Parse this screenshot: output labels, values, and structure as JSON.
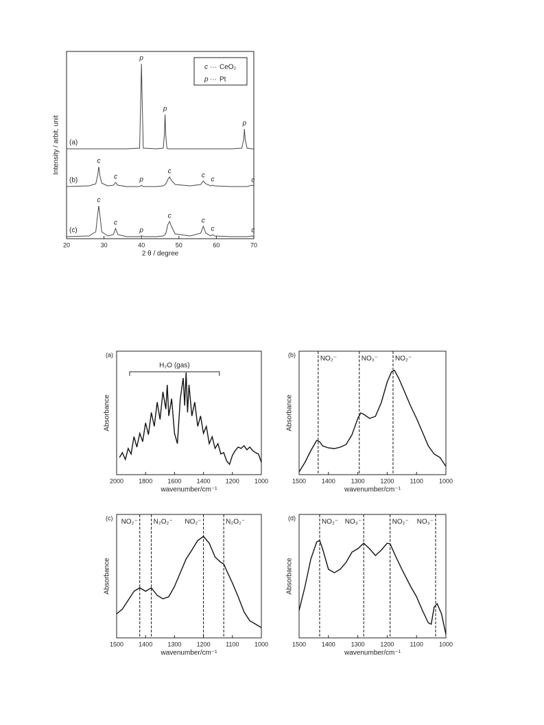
{
  "chart_data": [
    {
      "type": "xrd",
      "xlabel": "2 θ / degree",
      "ylabel": "Intensity / arbit. unit",
      "xlim": [
        20,
        70
      ],
      "xticks": [
        20,
        30,
        40,
        50,
        60,
        70
      ],
      "legend": [
        {
          "key": "c",
          "sep": "···",
          "text": "CeO₂"
        },
        {
          "key": "p",
          "sep": "···",
          "text": "Pt"
        }
      ],
      "x": [
        20,
        26,
        27.8,
        28.3,
        28.6,
        28.9,
        29.4,
        31,
        32.5,
        33.1,
        33.7,
        36,
        39.5,
        39.8,
        40,
        40.2,
        40.5,
        44,
        45.8,
        46.1,
        46.3,
        46.5,
        46.8,
        47,
        47.5,
        48,
        49,
        53,
        55.8,
        56.5,
        57.2,
        58.5,
        59,
        59.5,
        64,
        66.8,
        67.3,
        67.5,
        67.7,
        68.2,
        69.5,
        70
      ],
      "series": [
        {
          "name": "(a)",
          "color": "#444444",
          "values": [
            131,
            131,
            131,
            131,
            131,
            131,
            131,
            131,
            131,
            131,
            131,
            131,
            132,
            200,
            255,
            200,
            132,
            131,
            132,
            150,
            181,
            150,
            132,
            131,
            131,
            131,
            131,
            131,
            131,
            131,
            131,
            131,
            131,
            131,
            131,
            132,
            145,
            160,
            145,
            132,
            131,
            131
          ]
        },
        {
          "name": "(b)",
          "color": "#444444",
          "values": [
            76,
            77,
            80,
            92,
            105,
            92,
            81,
            77,
            78,
            82,
            78,
            76,
            76,
            77,
            78,
            77,
            76,
            76,
            77,
            78,
            79,
            80,
            83,
            86,
            90,
            85,
            79,
            77,
            79,
            84,
            80,
            77,
            78,
            77,
            76,
            76,
            76,
            76,
            76,
            76,
            78,
            77
          ]
        },
        {
          "name": "(c)",
          "color": "#444444",
          "values": [
            3,
            4,
            10,
            35,
            48,
            35,
            10,
            4,
            6,
            15,
            6,
            3,
            3,
            4,
            4,
            4,
            3,
            3,
            4,
            5,
            6,
            8,
            14,
            20,
            25,
            18,
            7,
            4,
            8,
            18,
            8,
            4,
            6,
            4,
            3,
            3,
            3,
            3,
            3,
            3,
            4,
            3
          ]
        }
      ],
      "annotations": [
        {
          "text": "p",
          "x": 40,
          "y": 258
        },
        {
          "text": "p",
          "x": 46.3,
          "y": 184
        },
        {
          "text": "p",
          "x": 67.5,
          "y": 163
        },
        {
          "text": "c",
          "x": 28.6,
          "y": 108
        },
        {
          "text": "c",
          "x": 33.1,
          "y": 85
        },
        {
          "text": "p",
          "x": 40,
          "y": 81
        },
        {
          "text": "c",
          "x": 47.5,
          "y": 93
        },
        {
          "text": "c",
          "x": 56.5,
          "y": 87
        },
        {
          "text": "c",
          "x": 59,
          "y": 81
        },
        {
          "text": "c",
          "x": 69.8,
          "y": 80
        },
        {
          "text": "c",
          "x": 28.6,
          "y": 51
        },
        {
          "text": "c",
          "x": 33.1,
          "y": 18
        },
        {
          "text": "p",
          "x": 40,
          "y": 7
        },
        {
          "text": "c",
          "x": 47.5,
          "y": 28
        },
        {
          "text": "c",
          "x": 56.5,
          "y": 21
        },
        {
          "text": "c",
          "x": 59,
          "y": 9
        },
        {
          "text": "c",
          "x": 69.8,
          "y": 7
        }
      ]
    },
    {
      "type": "ir",
      "panel_label": "(a)",
      "xlabel": "wavenumber/cm⁻¹",
      "ylabel": "Absorbance",
      "xlim": [
        2000,
        1000
      ],
      "xticks": [
        2000,
        1800,
        1600,
        1400,
        1200,
        1000
      ],
      "bracket": {
        "text": "H₂O (gas)",
        "x": [
          1910,
          1290
        ]
      },
      "markers": [],
      "x": [
        1980,
        1960,
        1940,
        1920,
        1900,
        1880,
        1860,
        1840,
        1820,
        1800,
        1780,
        1760,
        1740,
        1720,
        1700,
        1680,
        1660,
        1650,
        1640,
        1620,
        1600,
        1580,
        1560,
        1540,
        1530,
        1520,
        1510,
        1500,
        1480,
        1460,
        1440,
        1420,
        1400,
        1380,
        1360,
        1340,
        1320,
        1300,
        1280,
        1260,
        1240,
        1220,
        1200,
        1180,
        1160,
        1140,
        1120,
        1100,
        1080,
        1060,
        1040,
        1020,
        1000
      ],
      "values": [
        25,
        32,
        22,
        38,
        30,
        55,
        40,
        60,
        48,
        75,
        58,
        90,
        70,
        105,
        80,
        120,
        95,
        130,
        85,
        110,
        60,
        45,
        110,
        140,
        100,
        148,
        90,
        130,
        85,
        105,
        70,
        85,
        60,
        70,
        45,
        55,
        38,
        45,
        30,
        32,
        20,
        15,
        28,
        35,
        40,
        38,
        42,
        36,
        40,
        35,
        32,
        30,
        18
      ]
    },
    {
      "type": "ir",
      "panel_label": "(b)",
      "xlabel": "wavenumber/cm⁻¹",
      "ylabel": "Absorbance",
      "xlim": [
        1500,
        1000
      ],
      "xticks": [
        1500,
        1400,
        1300,
        1200,
        1100,
        1000
      ],
      "markers": [
        {
          "label": "NO₂⁻",
          "x": 1435
        },
        {
          "label": "NO₃⁻",
          "x": 1295
        },
        {
          "label": "NO₂⁻",
          "x": 1180
        }
      ],
      "x": [
        1500,
        1480,
        1460,
        1440,
        1430,
        1420,
        1400,
        1380,
        1360,
        1340,
        1320,
        1300,
        1290,
        1280,
        1260,
        1240,
        1220,
        1200,
        1185,
        1175,
        1160,
        1140,
        1120,
        1100,
        1080,
        1060,
        1040,
        1020,
        1000
      ],
      "values": [
        4,
        18,
        35,
        50,
        48,
        42,
        39,
        38,
        40,
        44,
        58,
        82,
        90,
        88,
        82,
        85,
        105,
        135,
        150,
        152,
        140,
        120,
        100,
        82,
        62,
        42,
        30,
        25,
        12
      ]
    },
    {
      "type": "ir",
      "panel_label": "(c)",
      "xlabel": "wavenumber/cm⁻¹",
      "ylabel": "Absorbance",
      "xlim": [
        1500,
        1000
      ],
      "xticks": [
        1500,
        1400,
        1300,
        1200,
        1100,
        1000
      ],
      "markers": [
        {
          "label": "NO₂⁻",
          "x": 1420
        },
        {
          "label": "N₂O₂⁻",
          "x": 1380
        },
        {
          "label": "NO₂⁻",
          "x": 1200
        },
        {
          "label": "N₂O₂⁻",
          "x": 1130
        }
      ],
      "x": [
        1500,
        1480,
        1460,
        1440,
        1420,
        1400,
        1380,
        1360,
        1340,
        1320,
        1300,
        1280,
        1260,
        1240,
        1220,
        1200,
        1180,
        1160,
        1140,
        1130,
        1120,
        1100,
        1080,
        1060,
        1040,
        1020,
        1000
      ],
      "values": [
        35,
        42,
        55,
        68,
        73,
        68,
        73,
        62,
        57,
        60,
        75,
        95,
        115,
        128,
        142,
        148,
        138,
        118,
        110,
        108,
        98,
        80,
        60,
        38,
        25,
        20,
        15
      ]
    },
    {
      "type": "ir",
      "panel_label": "(d)",
      "xlabel": "wavenumber/cm⁻¹",
      "ylabel": "Absorbance",
      "xlim": [
        1500,
        1000
      ],
      "xticks": [
        1500,
        1400,
        1300,
        1200,
        1100,
        1000
      ],
      "markers": [
        {
          "label": "NO₂⁻",
          "x": 1430
        },
        {
          "label": "NO₃⁻",
          "x": 1280
        },
        {
          "label": "NO₂⁻",
          "x": 1190
        },
        {
          "label": "NO₃⁻",
          "x": 1035
        }
      ],
      "x": [
        1500,
        1480,
        1460,
        1440,
        1430,
        1420,
        1400,
        1380,
        1360,
        1340,
        1320,
        1300,
        1280,
        1260,
        1240,
        1220,
        1200,
        1190,
        1170,
        1150,
        1120,
        1100,
        1080,
        1060,
        1050,
        1040,
        1030,
        1015,
        1000
      ],
      "values": [
        40,
        75,
        115,
        140,
        142,
        130,
        100,
        95,
        100,
        110,
        125,
        130,
        138,
        130,
        120,
        128,
        138,
        137,
        118,
        100,
        75,
        60,
        40,
        22,
        20,
        45,
        50,
        35,
        5
      ]
    }
  ]
}
